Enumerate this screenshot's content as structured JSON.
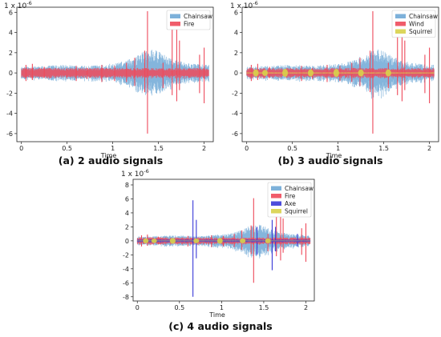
{
  "chart_data": [
    {
      "type": "area",
      "caption": "(a) 2 audio signals",
      "xlabel": "Time",
      "offset_text": {
        "base": "1 x 10",
        "exp": "-6"
      },
      "xlim": [
        -0.05,
        2.1
      ],
      "ylim": [
        -6.8,
        6.5
      ],
      "xticks": [
        0,
        0.5,
        1,
        1.5,
        2
      ],
      "xtick_labels": [
        "0",
        "0.5",
        "1",
        "1.5",
        "2"
      ],
      "yticks": [
        -6,
        -4,
        -2,
        0,
        2,
        4,
        6
      ],
      "ytick_labels": [
        "-6",
        "-4",
        "-2",
        "0",
        "2",
        "4",
        "6"
      ],
      "grid": false,
      "legend_position": "top-right",
      "series": [
        {
          "name": "Chainsaw",
          "color": "#6fa8d6",
          "noise_amp": 0.35,
          "envelope": [
            [
              0,
              0.6
            ],
            [
              0.45,
              0.8
            ],
            [
              0.75,
              0.7
            ],
            [
              1.05,
              1.0
            ],
            [
              1.2,
              1.4
            ],
            [
              1.35,
              2.2
            ],
            [
              1.45,
              2.4
            ],
            [
              1.6,
              1.6
            ],
            [
              1.8,
              1.0
            ],
            [
              2.05,
              0.8
            ]
          ],
          "spikes": []
        },
        {
          "name": "Fire",
          "color": "#ee4a5b",
          "noise_amp": 0.35,
          "envelope": [
            [
              0,
              0.5
            ],
            [
              2.05,
              0.5
            ]
          ],
          "spikes": [
            [
              0.05,
              0.8,
              -0.8
            ],
            [
              0.12,
              0.9,
              -0.7
            ],
            [
              0.25,
              0.6,
              -0.5
            ],
            [
              0.6,
              0.7,
              -0.8
            ],
            [
              0.72,
              0.5,
              -0.6
            ],
            [
              0.88,
              0.8,
              -0.9
            ],
            [
              1.02,
              0.7,
              -0.8
            ],
            [
              1.15,
              1.0,
              -0.9
            ],
            [
              1.24,
              1.5,
              -1.3
            ],
            [
              1.35,
              2.2,
              -1.9
            ],
            [
              1.38,
              6.1,
              -6.0
            ],
            [
              1.55,
              1.0,
              -1.5
            ],
            [
              1.65,
              4.3,
              -2.2
            ],
            [
              1.7,
              4.8,
              -2.8
            ],
            [
              1.73,
              3.2,
              -1.7
            ],
            [
              1.95,
              1.8,
              -2.0
            ],
            [
              2.0,
              2.5,
              -3.0
            ]
          ]
        }
      ]
    },
    {
      "type": "area",
      "caption": "(b)  3 audio signals",
      "xlabel": "Time",
      "offset_text": {
        "base": "1 x 10",
        "exp": "-6"
      },
      "xlim": [
        -0.05,
        2.1
      ],
      "ylim": [
        -6.8,
        6.5
      ],
      "xticks": [
        0,
        0.5,
        1,
        1.5,
        2
      ],
      "xtick_labels": [
        "0",
        "0.5",
        "1",
        "1.5",
        "2"
      ],
      "yticks": [
        -6,
        -4,
        -2,
        0,
        2,
        4,
        6
      ],
      "ytick_labels": [
        "-6",
        "-4",
        "-2",
        "0",
        "2",
        "4",
        "6"
      ],
      "grid": false,
      "legend_position": "top-right",
      "series": [
        {
          "name": "Chainsaw",
          "color": "#6fa8d6",
          "noise_amp": 0.35,
          "envelope": [
            [
              0,
              0.6
            ],
            [
              0.45,
              0.8
            ],
            [
              0.75,
              0.7
            ],
            [
              1.05,
              1.0
            ],
            [
              1.2,
              1.4
            ],
            [
              1.35,
              2.2
            ],
            [
              1.45,
              2.4
            ],
            [
              1.6,
              1.6
            ],
            [
              1.8,
              1.0
            ],
            [
              2.05,
              0.8
            ]
          ],
          "spikes": []
        },
        {
          "name": "Wind",
          "color": "#ee4a5b",
          "noise_amp": 0.35,
          "envelope": [
            [
              0,
              0.5
            ],
            [
              2.05,
              0.5
            ]
          ],
          "spikes": [
            [
              0.05,
              0.8,
              -0.8
            ],
            [
              0.12,
              0.9,
              -0.7
            ],
            [
              0.25,
              0.6,
              -0.5
            ],
            [
              0.6,
              0.7,
              -0.8
            ],
            [
              0.72,
              0.5,
              -0.6
            ],
            [
              0.88,
              0.8,
              -0.9
            ],
            [
              1.02,
              0.7,
              -0.8
            ],
            [
              1.15,
              1.0,
              -0.9
            ],
            [
              1.24,
              1.5,
              -1.3
            ],
            [
              1.35,
              2.2,
              -1.9
            ],
            [
              1.38,
              6.1,
              -6.0
            ],
            [
              1.55,
              1.0,
              -1.5
            ],
            [
              1.65,
              4.3,
              -2.2
            ],
            [
              1.7,
              4.8,
              -2.8
            ],
            [
              1.73,
              3.2,
              -1.7
            ],
            [
              1.95,
              1.8,
              -2.0
            ],
            [
              2.0,
              2.5,
              -3.0
            ]
          ]
        },
        {
          "name": "Squirrel",
          "color": "#d8d24a",
          "noise_amp": 0.06,
          "envelope": [
            [
              0,
              0.05
            ],
            [
              2.05,
              0.05
            ]
          ],
          "blobs": [
            [
              0.1,
              0.35
            ],
            [
              0.2,
              0.3
            ],
            [
              0.42,
              0.4
            ],
            [
              0.7,
              0.35
            ],
            [
              0.98,
              0.4
            ],
            [
              1.25,
              0.35
            ],
            [
              1.55,
              0.35
            ]
          ]
        }
      ]
    },
    {
      "type": "area",
      "caption": "(c) 4 audio signals",
      "xlabel": "Time",
      "offset_text": {
        "base": "1 x 10",
        "exp": "-6"
      },
      "xlim": [
        -0.05,
        2.1
      ],
      "ylim": [
        -8.6,
        8.8
      ],
      "xticks": [
        0,
        0.5,
        1,
        1.5,
        2
      ],
      "xtick_labels": [
        "0",
        "0.5",
        "1",
        "1.5",
        "2"
      ],
      "yticks": [
        -8,
        -6,
        -4,
        -2,
        0,
        2,
        4,
        6,
        8
      ],
      "ytick_labels": [
        "-8",
        "-6",
        "-4",
        "-2",
        "0",
        "2",
        "4",
        "6",
        "8"
      ],
      "grid": false,
      "legend_position": "top-right",
      "series": [
        {
          "name": "Chainsaw",
          "color": "#6fa8d6",
          "noise_amp": 0.35,
          "envelope": [
            [
              0,
              0.6
            ],
            [
              0.45,
              0.8
            ],
            [
              0.75,
              0.7
            ],
            [
              1.05,
              1.0
            ],
            [
              1.2,
              1.4
            ],
            [
              1.35,
              2.2
            ],
            [
              1.45,
              2.4
            ],
            [
              1.6,
              1.6
            ],
            [
              1.8,
              1.0
            ],
            [
              2.05,
              0.8
            ]
          ],
          "spikes": []
        },
        {
          "name": "Fire",
          "color": "#ee4a5b",
          "noise_amp": 0.35,
          "envelope": [
            [
              0,
              0.5
            ],
            [
              2.05,
              0.5
            ]
          ],
          "spikes": [
            [
              0.05,
              0.8,
              -0.8
            ],
            [
              0.12,
              0.9,
              -0.7
            ],
            [
              0.25,
              0.6,
              -0.5
            ],
            [
              0.6,
              0.7,
              -0.8
            ],
            [
              0.72,
              0.5,
              -0.6
            ],
            [
              0.88,
              0.8,
              -0.9
            ],
            [
              1.02,
              0.7,
              -0.8
            ],
            [
              1.15,
              1.0,
              -0.9
            ],
            [
              1.24,
              1.5,
              -1.3
            ],
            [
              1.35,
              2.2,
              -1.9
            ],
            [
              1.38,
              6.1,
              -6.0
            ],
            [
              1.55,
              1.0,
              -1.5
            ],
            [
              1.65,
              4.3,
              -2.2
            ],
            [
              1.7,
              4.8,
              -2.8
            ],
            [
              1.73,
              3.2,
              -1.7
            ],
            [
              1.95,
              1.8,
              -2.0
            ],
            [
              2.0,
              2.5,
              -3.0
            ]
          ]
        },
        {
          "name": "Axe",
          "color": "#3a3ad8",
          "noise_amp": 0.15,
          "envelope": [
            [
              0,
              0.2
            ],
            [
              2.05,
              0.2
            ]
          ],
          "spikes": [
            [
              0.66,
              5.8,
              -8.0
            ],
            [
              0.7,
              3.0,
              -2.5
            ],
            [
              1.42,
              2.0,
              -2.0
            ],
            [
              1.6,
              3.0,
              -4.2
            ],
            [
              1.64,
              2.0,
              -1.5
            ],
            [
              1.9,
              1.0,
              -0.8
            ]
          ]
        },
        {
          "name": "Squirrel",
          "color": "#d8d24a",
          "noise_amp": 0.06,
          "envelope": [
            [
              0,
              0.05
            ],
            [
              2.05,
              0.05
            ]
          ],
          "blobs": [
            [
              0.1,
              0.35
            ],
            [
              0.2,
              0.3
            ],
            [
              0.42,
              0.4
            ],
            [
              0.7,
              0.35
            ],
            [
              0.98,
              0.4
            ],
            [
              1.25,
              0.35
            ],
            [
              1.55,
              0.35
            ]
          ]
        }
      ]
    }
  ]
}
